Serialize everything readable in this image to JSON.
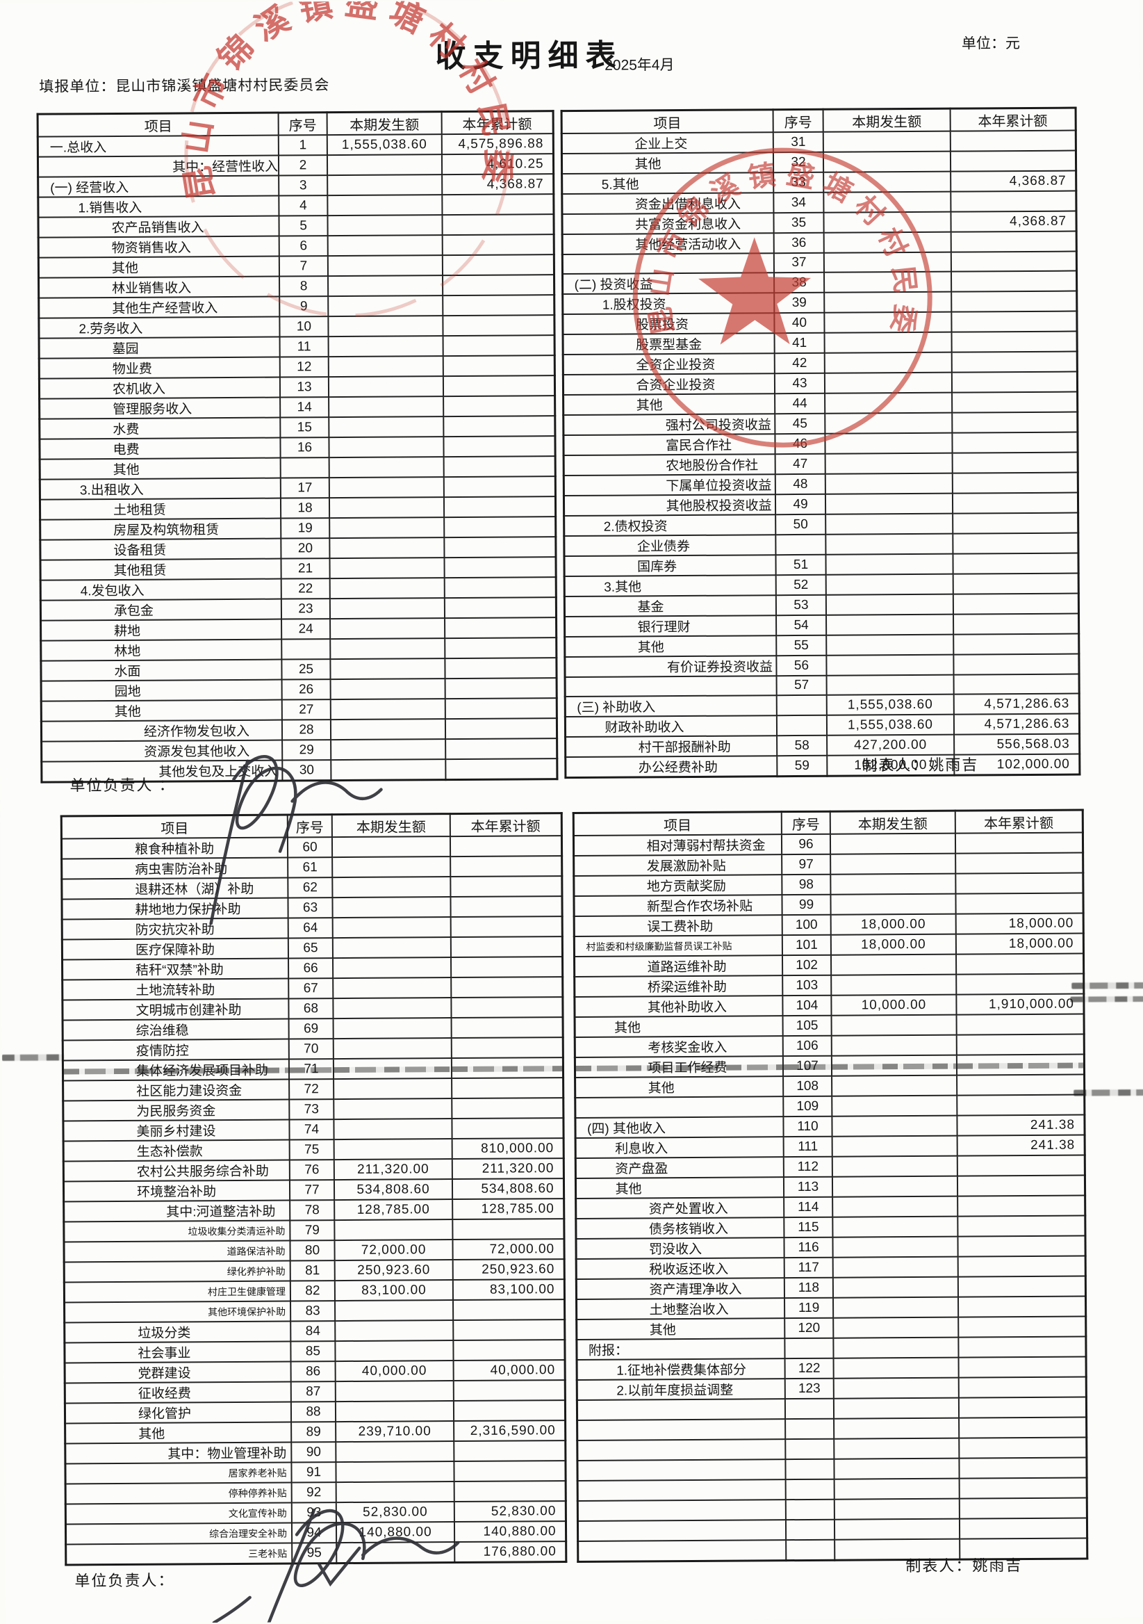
{
  "header": {
    "title": "收支明细表",
    "report_unit_label": "填报单位：",
    "report_unit": "昆山市锦溪镇盛塘村村民委员会",
    "period": "2025年4月",
    "unit_note": "单位：元"
  },
  "columns": {
    "item": "项目",
    "no": "序号",
    "current": "本期发生额",
    "cumulative": "本年累计额"
  },
  "footers": {
    "responsible_label_1": "单位负责人 ：",
    "responsible_label_2": "单位负责人：",
    "preparer_label": "制表人：",
    "preparer_name": "姚雨吉"
  },
  "stamps": {
    "top_text": "昆山市锦溪镇盛塘村村民委员会",
    "mid_text": "昆山市锦溪镇盛塘村村民委员会",
    "color": "#c2332b"
  },
  "tables": {
    "part1_left": {
      "rows": [
        {
          "l": "一.总收入",
          "n": "1",
          "a": "1,555,038.60",
          "b": "4,575,896.88",
          "i": 0
        },
        {
          "l": "其中：经营性收入",
          "n": "2",
          "b": "4,610.25",
          "i": 5
        },
        {
          "l": "(一) 经营收入",
          "n": "3",
          "b": "4,368.87",
          "i": 0
        },
        {
          "l": "1.销售收入",
          "n": "4",
          "i": 1
        },
        {
          "l": "农产品销售收入",
          "n": "5",
          "i": 2
        },
        {
          "l": "物资销售收入",
          "n": "6",
          "i": 2
        },
        {
          "l": "其他",
          "n": "7",
          "i": 2
        },
        {
          "l": "林业销售收入",
          "n": "8",
          "i": 2
        },
        {
          "l": "其他生产经营收入",
          "n": "9",
          "i": 2
        },
        {
          "l": "2.劳务收入",
          "n": "10",
          "i": 1
        },
        {
          "l": "墓园",
          "n": "11",
          "i": 2
        },
        {
          "l": "物业费",
          "n": "12",
          "i": 2
        },
        {
          "l": "农机收入",
          "n": "13",
          "i": 2
        },
        {
          "l": "管理服务收入",
          "n": "14",
          "i": 2
        },
        {
          "l": "水费",
          "n": "15",
          "i": 2
        },
        {
          "l": "电费",
          "n": "16",
          "i": 2
        },
        {
          "l": "其他",
          "n": "",
          "i": 2
        },
        {
          "l": "3.出租收入",
          "n": "17",
          "i": 1
        },
        {
          "l": "土地租赁",
          "n": "18",
          "i": 2
        },
        {
          "l": "房屋及构筑物租赁",
          "n": "19",
          "i": 2
        },
        {
          "l": "设备租赁",
          "n": "20",
          "i": 2
        },
        {
          "l": "其他租赁",
          "n": "21",
          "i": 2
        },
        {
          "l": "4.发包收入",
          "n": "22",
          "i": 1
        },
        {
          "l": "承包金",
          "n": "23",
          "i": 2
        },
        {
          "l": "耕地",
          "n": "24",
          "i": 2
        },
        {
          "l": "林地",
          "n": "",
          "i": 2
        },
        {
          "l": "水面",
          "n": "25",
          "i": 2
        },
        {
          "l": "园地",
          "n": "26",
          "i": 2
        },
        {
          "l": "其他",
          "n": "27",
          "i": 2
        },
        {
          "l": "经济作物发包收入",
          "n": "28",
          "i": 3
        },
        {
          "l": "资源发包其他收入",
          "n": "29",
          "i": 3
        },
        {
          "l": "其他发包及上交收入",
          "n": "30",
          "i": 3,
          "r": 1
        }
      ]
    },
    "part1_right": {
      "rows": [
        {
          "l": "企业上交",
          "n": "31",
          "i": 2
        },
        {
          "l": "其他",
          "n": "32",
          "i": 2
        },
        {
          "l": "5.其他",
          "n": "33",
          "b": "4,368.87",
          "i": 1
        },
        {
          "l": "资金出借利息收入",
          "n": "34",
          "i": 2
        },
        {
          "l": "共富资金利息收入",
          "n": "35",
          "b": "4,368.87",
          "i": 2
        },
        {
          "l": "其他经营活动收入",
          "n": "36",
          "i": 2
        },
        {
          "l": "",
          "n": "37",
          "i": 0
        },
        {
          "l": "(二) 投资收益",
          "n": "38",
          "i": 0
        },
        {
          "l": "1.股权投资",
          "n": "39",
          "i": 1
        },
        {
          "l": "股票投资",
          "n": "40",
          "i": 2
        },
        {
          "l": "股票型基金",
          "n": "41",
          "i": 2
        },
        {
          "l": "全资企业投资",
          "n": "42",
          "i": 2
        },
        {
          "l": "合资企业投资",
          "n": "43",
          "i": 2
        },
        {
          "l": "其他",
          "n": "44",
          "i": 2
        },
        {
          "l": "强村公司投资收益",
          "n": "45",
          "i": 3
        },
        {
          "l": "富民合作社",
          "n": "46",
          "i": 3
        },
        {
          "l": "农地股份合作社",
          "n": "47",
          "i": 3
        },
        {
          "l": "下属单位投资收益",
          "n": "48",
          "i": 3
        },
        {
          "l": "其他股权投资收益",
          "n": "49",
          "i": 3
        },
        {
          "l": "2.债权投资",
          "n": "50",
          "i": 1
        },
        {
          "l": "企业债券",
          "n": "",
          "i": 2
        },
        {
          "l": "国库券",
          "n": "51",
          "i": 2
        },
        {
          "l": "3.其他",
          "n": "52",
          "i": 1
        },
        {
          "l": "基金",
          "n": "53",
          "i": 2
        },
        {
          "l": "银行理财",
          "n": "54",
          "i": 2
        },
        {
          "l": "其他",
          "n": "55",
          "i": 2
        },
        {
          "l": "有价证券投资收益",
          "n": "56",
          "i": 3
        },
        {
          "l": "",
          "n": "57",
          "i": 0
        },
        {
          "l": "(三) 补助收入",
          "n": "",
          "a": "1,555,038.60",
          "b": "4,571,286.63",
          "i": 0
        },
        {
          "l": "财政补助收入",
          "n": "",
          "a": "1,555,038.60",
          "b": "4,571,286.63",
          "i": 1
        },
        {
          "l": "村干部报酬补助",
          "n": "58",
          "a": "427,200.00",
          "b": "556,568.03",
          "i": 2
        },
        {
          "l": "办公经费补助",
          "n": "59",
          "a": "102,000.00",
          "b": "102,000.00",
          "i": 2
        }
      ]
    },
    "part2_left": {
      "rows": [
        {
          "l": "粮食种植补助",
          "n": "60",
          "i": 2
        },
        {
          "l": "病虫害防治补助",
          "n": "61",
          "i": 2
        },
        {
          "l": "退耕还林（湖）补助",
          "n": "62",
          "i": 2
        },
        {
          "l": "耕地地力保护补助",
          "n": "63",
          "i": 2
        },
        {
          "l": "防灾抗灾补助",
          "n": "64",
          "i": 2
        },
        {
          "l": "医疗保障补助",
          "n": "65",
          "i": 2
        },
        {
          "l": "秸秆“双禁”补助",
          "n": "66",
          "i": 2
        },
        {
          "l": "土地流转补助",
          "n": "67",
          "i": 2
        },
        {
          "l": "文明城市创建补助",
          "n": "68",
          "i": 2
        },
        {
          "l": "综治维稳",
          "n": "69",
          "i": 2
        },
        {
          "l": "疫情防控",
          "n": "70",
          "i": 2
        },
        {
          "l": "集体经济发展项目补助",
          "n": "71",
          "i": 2,
          "x": 1
        },
        {
          "l": "社区能力建设资金",
          "n": "72",
          "i": 2
        },
        {
          "l": "为民服务资金",
          "n": "73",
          "i": 2
        },
        {
          "l": "美丽乡村建设",
          "n": "74",
          "i": 2
        },
        {
          "l": "生态补偿款",
          "n": "75",
          "b": "810,000.00",
          "i": 2
        },
        {
          "l": "农村公共服务综合补助",
          "n": "76",
          "a": "211,320.00",
          "b": "211,320.00",
          "i": 2
        },
        {
          "l": "环境整治补助",
          "n": "77",
          "a": "534,808.60",
          "b": "534,808.60",
          "i": 2
        },
        {
          "l": "其中:河道整洁补助",
          "n": "78",
          "a": "128,785.00",
          "b": "128,785.00",
          "i": 3
        },
        {
          "l": "垃圾收集分类清运补助",
          "n": "79",
          "i": 3,
          "s": 1,
          "r": 1
        },
        {
          "l": "道路保洁补助",
          "n": "80",
          "a": "72,000.00",
          "b": "72,000.00",
          "i": 3,
          "s": 1,
          "r": 1
        },
        {
          "l": "绿化养护补助",
          "n": "81",
          "a": "250,923.60",
          "b": "250,923.60",
          "i": 3,
          "s": 1,
          "r": 1
        },
        {
          "l": "村庄卫生健康管理",
          "n": "82",
          "a": "83,100.00",
          "b": "83,100.00",
          "i": 3,
          "s": 1,
          "r": 1
        },
        {
          "l": "其他环境保护补助",
          "n": "83",
          "i": 3,
          "s": 1,
          "r": 1
        },
        {
          "l": "垃圾分类",
          "n": "84",
          "i": 2
        },
        {
          "l": "社会事业",
          "n": "85",
          "i": 2
        },
        {
          "l": "党群建设",
          "n": "86",
          "a": "40,000.00",
          "b": "40,000.00",
          "i": 2
        },
        {
          "l": "征收经费",
          "n": "87",
          "i": 2
        },
        {
          "l": "绿化管护",
          "n": "88",
          "i": 2
        },
        {
          "l": "其他",
          "n": "89",
          "a": "239,710.00",
          "b": "2,316,590.00",
          "i": 2
        },
        {
          "l": "其中：物业管理补助",
          "n": "90",
          "i": 3,
          "r": 1
        },
        {
          "l": "居家养老补贴",
          "n": "91",
          "i": 3,
          "s": 1,
          "r": 1
        },
        {
          "l": "停种停养补贴",
          "n": "92",
          "i": 3,
          "s": 1,
          "r": 1
        },
        {
          "l": "文化宣传补助",
          "n": "93",
          "a": "52,830.00",
          "b": "52,830.00",
          "i": 3,
          "s": 1,
          "r": 1
        },
        {
          "l": "综合治理安全补助",
          "n": "94",
          "a": "140,880.00",
          "b": "140,880.00",
          "i": 3,
          "s": 1,
          "r": 1
        },
        {
          "l": "三老补贴",
          "n": "95",
          "b": "176,880.00",
          "i": 3,
          "s": 1,
          "r": 1
        }
      ]
    },
    "part2_right": {
      "rows": [
        {
          "l": "相对薄弱村帮扶资金",
          "n": "96",
          "i": 2
        },
        {
          "l": "发展激励补贴",
          "n": "97",
          "i": 2
        },
        {
          "l": "地方贡献奖励",
          "n": "98",
          "i": 2
        },
        {
          "l": "新型合作农场补贴",
          "n": "99",
          "i": 2
        },
        {
          "l": "误工费补助",
          "n": "100",
          "a": "18,000.00",
          "b": "18,000.00",
          "i": 2
        },
        {
          "l": "村监委和村级廉勤监督员误工补贴",
          "n": "101",
          "a": "18,000.00",
          "b": "18,000.00",
          "i": 0,
          "s": 1
        },
        {
          "l": "道路运维补助",
          "n": "102",
          "i": 2
        },
        {
          "l": "桥梁运维补助",
          "n": "103",
          "i": 2
        },
        {
          "l": "其他补助收入",
          "n": "104",
          "a": "10,000.00",
          "b": "1,910,000.00",
          "i": 2
        },
        {
          "l": "其他",
          "n": "105",
          "i": 1
        },
        {
          "l": "考核奖金收入",
          "n": "106",
          "i": 2
        },
        {
          "l": "项目工作经费",
          "n": "107",
          "i": 2,
          "x": 1
        },
        {
          "l": "其他",
          "n": "108",
          "i": 2
        },
        {
          "l": "",
          "n": "109",
          "i": 0
        },
        {
          "l": "(四) 其他收入",
          "n": "110",
          "b": "241.38",
          "i": 0
        },
        {
          "l": "利息收入",
          "n": "111",
          "b": "241.38",
          "i": 1
        },
        {
          "l": "资产盘盈",
          "n": "112",
          "i": 1
        },
        {
          "l": "其他",
          "n": "113",
          "i": 1
        },
        {
          "l": "资产处置收入",
          "n": "114",
          "i": 2
        },
        {
          "l": "债务核销收入",
          "n": "115",
          "i": 2
        },
        {
          "l": "罚没收入",
          "n": "116",
          "i": 2
        },
        {
          "l": "税收返还收入",
          "n": "117",
          "i": 2
        },
        {
          "l": "资产清理净收入",
          "n": "118",
          "i": 2
        },
        {
          "l": "土地整治收入",
          "n": "119",
          "i": 2
        },
        {
          "l": "其他",
          "n": "120",
          "i": 2
        },
        {
          "l": "附报：",
          "n": "",
          "i": 0
        },
        {
          "l": "1.征地补偿费集体部分",
          "n": "122",
          "i": 1
        },
        {
          "l": "2.以前年度损益调整",
          "n": "123",
          "i": 1
        },
        {},
        {},
        {},
        {},
        {},
        {},
        {},
        {}
      ]
    }
  }
}
